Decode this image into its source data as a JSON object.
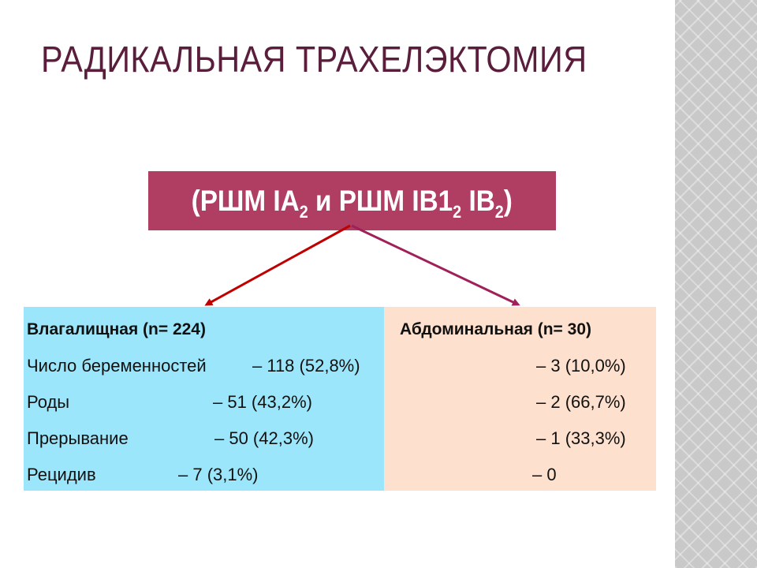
{
  "slide": {
    "title": "РАДИКАЛЬНАЯ ТРАХЕЛЭКТОМИЯ",
    "stage": {
      "p1": "(РШМ IA",
      "s1": "2",
      "p2": " и РШМ IB1",
      "s2": "2",
      "p3": " IB",
      "s3": "2",
      "p4": ")"
    }
  },
  "vaginal": {
    "header": "Влагалищная  (n= 224)",
    "rows": [
      {
        "label": "Число беременностей",
        "value": "– 118 (52,8%)"
      },
      {
        "label": "Роды",
        "value": "– 51 (43,2%)"
      },
      {
        "label": "Прерывание",
        "value": "– 50 (42,3%)"
      },
      {
        "label": "Рецидив",
        "value": "– 7 (3,1%)"
      }
    ]
  },
  "abdominal": {
    "header": "Абдоминальная (n= 30)",
    "values": [
      "– 3 (10,0%)",
      "– 2 (66,7%)",
      "– 1 (33,3%)",
      "– 0"
    ]
  },
  "colors": {
    "title": "#5a1e3c",
    "stage_box": "#b03d62",
    "left_panel": "#9ce6fc",
    "right_panel": "#fde0cd",
    "arrow_left": "#c00000",
    "arrow_right": "#a0205a"
  }
}
